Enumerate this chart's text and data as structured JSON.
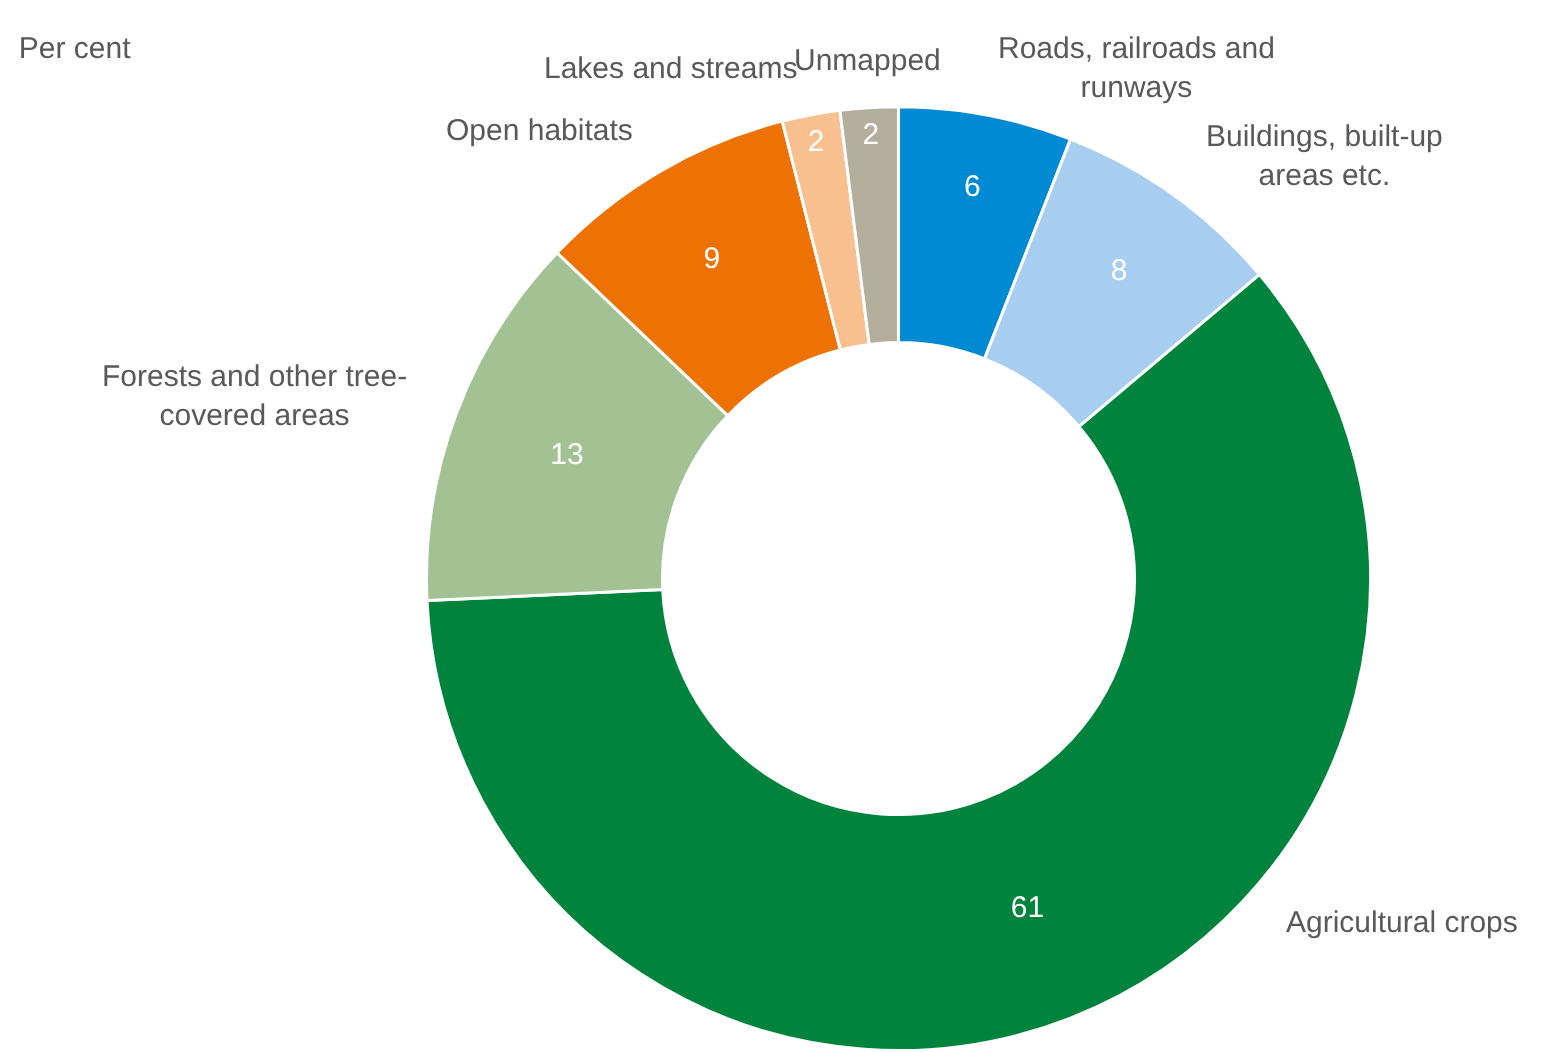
{
  "chart_data": {
    "type": "donut",
    "title": "Per cent",
    "categories": [
      "Roads, railroads and runways",
      "Buildings, built-up areas etc.",
      "Agricultural crops",
      "Forests and other tree-covered areas",
      "Open habitats",
      "Lakes and streams",
      "Unmapped"
    ],
    "values": [
      6,
      8,
      61,
      13,
      9,
      2,
      2
    ],
    "colors": [
      "#008ad3",
      "#a7cdf0",
      "#00843d",
      "#a3c293",
      "#ed7203",
      "#f9c08f",
      "#b3ad9c"
    ],
    "data_labels": true,
    "legend": false
  }
}
